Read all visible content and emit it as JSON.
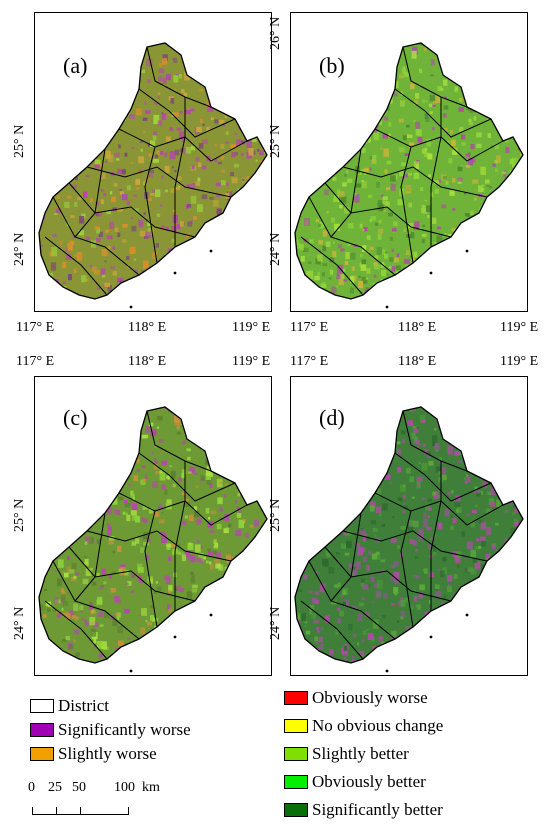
{
  "panels": [
    {
      "id": "a",
      "label": "(a)",
      "palette": {
        "base": "#8a9636",
        "patches": [
          "#b24aa6",
          "#b24aa6",
          "#d88f2a",
          "#c9a63a",
          "#9bd23a",
          "#7d4a7a"
        ]
      },
      "lon_labels_top": [],
      "lon_labels_bottom": [
        "117° E",
        "118° E",
        "119° E"
      ],
      "lat_labels": [
        "25° N",
        "24° N"
      ]
    },
    {
      "id": "b",
      "label": "(b)",
      "palette": {
        "base": "#6fb338",
        "patches": [
          "#8fd63a",
          "#9bd23a",
          "#c9b43a",
          "#b24aa6",
          "#4f8a2e",
          "#a8e040"
        ]
      },
      "lon_labels_top": [],
      "lon_labels_bottom": [
        "117° E",
        "118° E",
        "119° E"
      ],
      "lat_labels": [
        "26° N",
        "25° N",
        "24° N"
      ]
    },
    {
      "id": "c",
      "label": "(c)",
      "palette": {
        "base": "#6e9a36",
        "patches": [
          "#8fd63a",
          "#b24aa6",
          "#c98f3a",
          "#5c7f2e",
          "#a8e040",
          "#b24aa6"
        ]
      },
      "lon_labels_top": [
        "117° E",
        "118° E",
        "119° E"
      ],
      "lon_labels_bottom": [],
      "lat_labels": [
        "25° N",
        "24° N"
      ]
    },
    {
      "id": "d",
      "label": "(d)",
      "palette": {
        "base": "#3f7f3a",
        "patches": [
          "#b24aa6",
          "#2e6b2e",
          "#5fae3a",
          "#8a5a8a",
          "#4c9a38",
          "#b24aa6"
        ]
      },
      "lon_labels_top": [
        "117° E",
        "118° E",
        "119° E"
      ],
      "lon_labels_bottom": [],
      "lat_labels": [
        "25° N",
        "24° N"
      ]
    }
  ],
  "legend": {
    "left": [
      {
        "label": "District",
        "color": "#ffffff"
      },
      {
        "label": "Significantly worse",
        "color": "#a000b4"
      },
      {
        "label": "Slightly worse",
        "color": "#f2a000"
      }
    ],
    "right": [
      {
        "label": "Obviously worse",
        "color": "#ff0000"
      },
      {
        "label": "No obvious change",
        "color": "#ffff00"
      },
      {
        "label": "Slightly better",
        "color": "#7fe000"
      },
      {
        "label": "Obviously better",
        "color": "#00ee00"
      },
      {
        "label": "Significantly better",
        "color": "#0a6e0a"
      }
    ]
  },
  "scalebar": {
    "ticks": [
      "0",
      "25",
      "50",
      "100"
    ],
    "unit": "km"
  }
}
